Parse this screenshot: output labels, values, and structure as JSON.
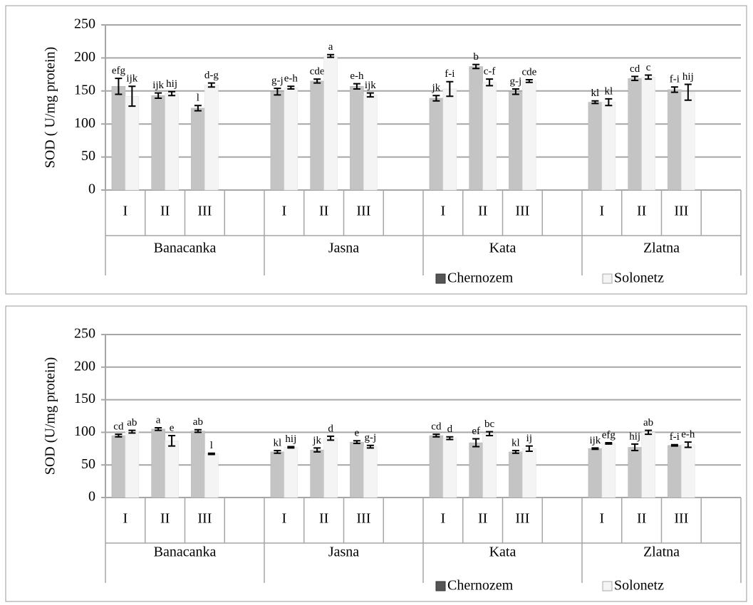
{
  "chart_data": [
    {
      "type": "bar",
      "y_label": "SOD ( U/mg protein)",
      "categories": [
        "I",
        "II",
        "III",
        "I",
        "II",
        "III",
        "I",
        "II",
        "III",
        "I",
        "II",
        "III"
      ],
      "groups": [
        "Banacanka",
        "Jasna",
        "Kata",
        "Zlatna"
      ],
      "series": [
        {
          "name": "Chernozem",
          "color": "#c4c4c4",
          "values": [
            157,
            143,
            124,
            149,
            165,
            157,
            139,
            187,
            149,
            133,
            169,
            152
          ],
          "errors": [
            12,
            4,
            4,
            5,
            3,
            4,
            4,
            3,
            4,
            2,
            3,
            4
          ],
          "letters": [
            "efg",
            "ijk",
            "l",
            "g-j",
            "cde",
            "e-h",
            "jk",
            "b",
            "g-j",
            "kl",
            "cd",
            "f-i"
          ]
        },
        {
          "name": "Solonetz",
          "color": "#f4f4f4",
          "values": [
            142,
            146,
            159,
            155,
            203,
            144,
            153,
            163,
            165,
            133,
            171,
            148
          ],
          "errors": [
            15,
            3,
            3,
            2,
            2,
            3,
            11,
            5,
            2,
            5,
            3,
            12
          ],
          "letters": [
            "ijk",
            "hij",
            "d-g",
            "e-h",
            "a",
            "ijk",
            "f-i",
            "c-f",
            "cde",
            "kl",
            "c",
            "hij"
          ]
        }
      ],
      "ylim": [
        0,
        250
      ],
      "yticks": [
        0,
        50,
        100,
        150,
        200,
        250
      ],
      "grid": true,
      "legend": "bottom"
    },
    {
      "type": "bar",
      "y_label": "SOD (U/mg protein)",
      "categories": [
        "I",
        "II",
        "III",
        "I",
        "II",
        "III",
        "I",
        "II",
        "III",
        "I",
        "II",
        "III"
      ],
      "groups": [
        "Banacanka",
        "Jasna",
        "Kata",
        "Zlatna"
      ],
      "series": [
        {
          "name": "Chernozem",
          "color": "#c4c4c4",
          "values": [
            95,
            105,
            102,
            70,
            73,
            85,
            95,
            84,
            70,
            75,
            77,
            80
          ],
          "errors": [
            2,
            2,
            2,
            2,
            3,
            2,
            2,
            6,
            2,
            1,
            5,
            1
          ],
          "letters": [
            "cd",
            "a",
            "ab",
            "kl",
            "jk",
            "e",
            "cd",
            "ef",
            "kl",
            "ijk",
            "hij",
            "f-i"
          ]
        },
        {
          "name": "Solonetz",
          "color": "#f4f4f4",
          "values": [
            101,
            87,
            67,
            77,
            91,
            78,
            91,
            98,
            75,
            83,
            100,
            81
          ],
          "errors": [
            2,
            8,
            1,
            1,
            3,
            2,
            2,
            3,
            4,
            1,
            3,
            4
          ],
          "letters": [
            "ab",
            "e",
            "l",
            "hij",
            "d",
            "g-j",
            "d",
            "bc",
            "ij",
            "efg",
            "ab",
            "e-h"
          ]
        }
      ],
      "ylim": [
        0,
        250
      ],
      "yticks": [
        0,
        50,
        100,
        150,
        200,
        250
      ],
      "grid": true,
      "legend": "bottom"
    }
  ]
}
